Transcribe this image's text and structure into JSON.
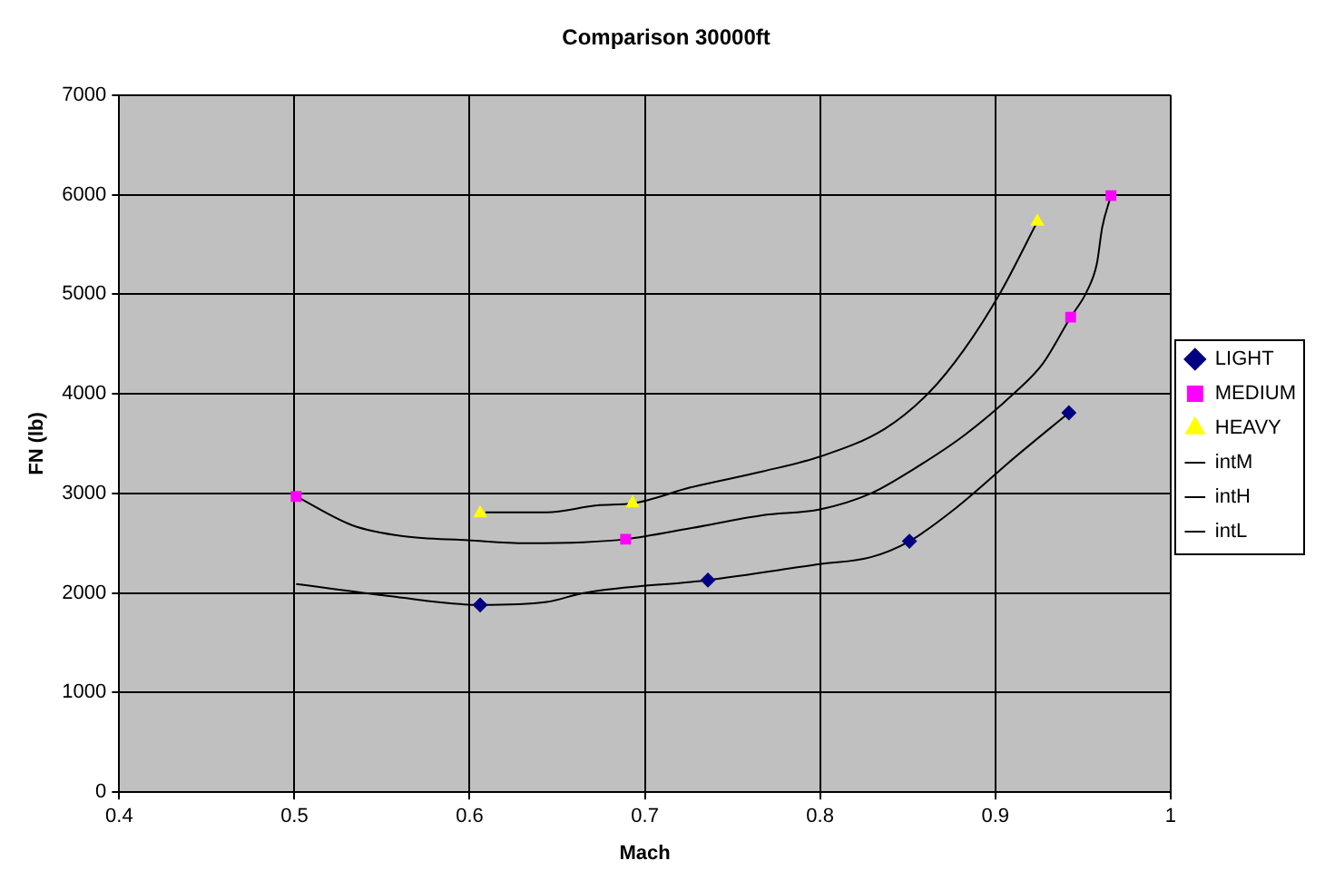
{
  "chart_data": {
    "type": "scatter",
    "title": "Comparison 30000ft",
    "xlabel": "Mach",
    "ylabel": "FN (lb)",
    "xlim": [
      0.4,
      1
    ],
    "xticks": [
      0.4,
      0.5,
      0.6,
      0.7,
      0.8,
      0.9,
      1
    ],
    "ylim": [
      0,
      7000
    ],
    "yticks": [
      0,
      1000,
      2000,
      3000,
      4000,
      5000,
      6000,
      7000
    ],
    "grid": true,
    "legend": "right",
    "series": [
      {
        "name": "LIGHT",
        "type": "scatter",
        "marker": "diamond",
        "color": "#000080",
        "x": [
          0.606,
          0.736,
          0.851,
          0.942
        ],
        "values": [
          1880,
          2130,
          2520,
          3810
        ]
      },
      {
        "name": "MEDIUM",
        "type": "scatter",
        "marker": "square",
        "color": "#ff00ff",
        "x": [
          0.501,
          0.689,
          0.943,
          0.966
        ],
        "values": [
          2970,
          2540,
          4770,
          5990
        ]
      },
      {
        "name": "HEAVY",
        "type": "scatter",
        "marker": "triangle",
        "color": "#ffff00",
        "x": [
          0.606,
          0.693,
          0.924
        ],
        "values": [
          2800,
          2900,
          5730
        ]
      },
      {
        "name": "intM",
        "type": "line",
        "marker": "none",
        "color": "#000000",
        "x": [
          0.501,
          0.533,
          0.562,
          0.599,
          0.632,
          0.665,
          0.689,
          0.726,
          0.767,
          0.8,
          0.829,
          0.853,
          0.882,
          0.911,
          0.927,
          0.943,
          0.952,
          0.958,
          0.961,
          0.966
        ],
        "values": [
          2970,
          2680,
          2570,
          2530,
          2500,
          2510,
          2540,
          2650,
          2780,
          2840,
          3000,
          3240,
          3580,
          4010,
          4300,
          4770,
          5020,
          5310,
          5670,
          5990
        ]
      },
      {
        "name": "intH",
        "type": "line",
        "marker": "none",
        "color": "#000000",
        "x": [
          0.609,
          0.644,
          0.673,
          0.693,
          0.726,
          0.767,
          0.8,
          0.837,
          0.862,
          0.882,
          0.903,
          0.924
        ],
        "values": [
          2810,
          2810,
          2880,
          2900,
          3060,
          3220,
          3370,
          3650,
          4010,
          4440,
          5020,
          5730
        ]
      },
      {
        "name": "intL",
        "type": "line",
        "marker": "none",
        "color": "#000000",
        "x": [
          0.501,
          0.554,
          0.606,
          0.644,
          0.665,
          0.736,
          0.8,
          0.829,
          0.851,
          0.878,
          0.911,
          0.942
        ],
        "values": [
          2090,
          1970,
          1880,
          1910,
          2000,
          2130,
          2290,
          2360,
          2520,
          2860,
          3360,
          3810
        ]
      }
    ]
  }
}
